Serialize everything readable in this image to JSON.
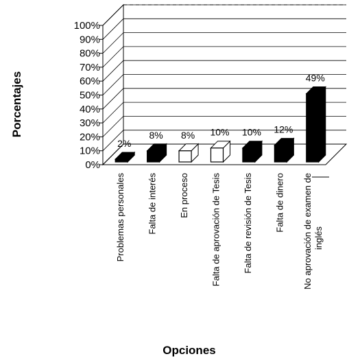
{
  "chart_data": {
    "type": "bar",
    "title": "",
    "xlabel": "Opciones",
    "ylabel": "Porcentajes",
    "ylim": [
      0,
      100
    ],
    "yticks": [
      "0%",
      "10%",
      "20%",
      "30%",
      "40%",
      "50%",
      "60%",
      "70%",
      "80%",
      "90%",
      "100%"
    ],
    "categories": [
      "Problemas personales",
      "Falta de interés",
      "En proceso",
      "Falta de aprovación de Tesis",
      "Falta de revisión de Tesis",
      "Falta de dinero",
      "No aprovación de examen de inglés"
    ],
    "values": [
      2,
      8,
      8,
      10,
      10,
      12,
      49
    ],
    "data_labels": [
      "2%",
      "8%",
      "8%",
      "10%",
      "10%",
      "12%",
      "49%"
    ],
    "bar_fills": [
      "#000000",
      "#000000",
      "#ffffff",
      "#ffffff",
      "#000000",
      "#000000",
      "#000000"
    ],
    "grid": true,
    "legend": "none",
    "style": "3d-columns"
  }
}
